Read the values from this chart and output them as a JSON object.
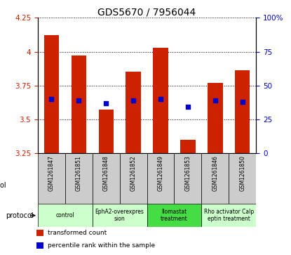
{
  "title": "GDS5670 / 7956044",
  "samples": [
    "GSM1261847",
    "GSM1261851",
    "GSM1261848",
    "GSM1261852",
    "GSM1261849",
    "GSM1261853",
    "GSM1261846",
    "GSM1261850"
  ],
  "bar_values": [
    4.12,
    3.97,
    3.57,
    3.85,
    4.03,
    3.35,
    3.77,
    3.86
  ],
  "bar_bottom": 3.25,
  "percentile_values": [
    3.65,
    3.64,
    3.62,
    3.64,
    3.65,
    3.59,
    3.64,
    3.63
  ],
  "ylim_left": [
    3.25,
    4.25
  ],
  "ylim_right": [
    0,
    100
  ],
  "yticks_left": [
    3.25,
    3.5,
    3.75,
    4.0,
    4.25
  ],
  "yticks_right": [
    0,
    25,
    50,
    75,
    100
  ],
  "ytick_labels_left": [
    "3.25",
    "3.5",
    "3.75",
    "4",
    "4.25"
  ],
  "ytick_labels_right": [
    "0",
    "25",
    "50",
    "75",
    "100%"
  ],
  "protocols": [
    {
      "label": "control",
      "span": [
        0,
        2
      ],
      "color": "#ccffcc"
    },
    {
      "label": "EphA2-overexpres\nsion",
      "span": [
        2,
        4
      ],
      "color": "#ccffcc"
    },
    {
      "label": "Ilomastat\ntreatment",
      "span": [
        4,
        6
      ],
      "color": "#44dd44"
    },
    {
      "label": "Rho activator Calp\neptin treatment",
      "span": [
        6,
        8
      ],
      "color": "#ccffcc"
    }
  ],
  "bar_color": "#cc2200",
  "dot_color": "#0000cc",
  "title_fontsize": 10,
  "left_tick_color": "#cc2200",
  "right_tick_color": "#0000cc",
  "sample_bg_color": "#cccccc",
  "legend_items": [
    {
      "color": "#cc2200",
      "label": "transformed count"
    },
    {
      "color": "#0000cc",
      "label": "percentile rank within the sample"
    }
  ]
}
